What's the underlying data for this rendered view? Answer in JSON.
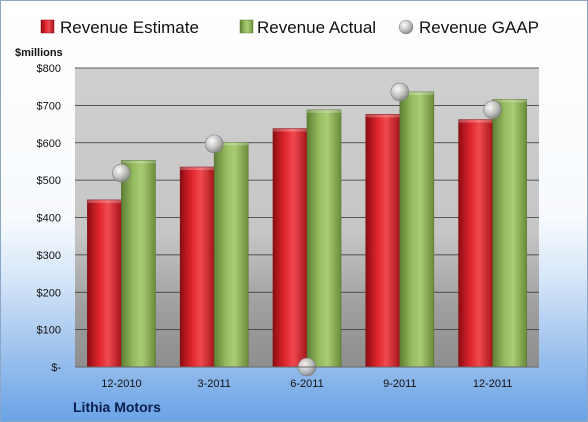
{
  "company": "Lithia Motors",
  "chart_data": {
    "type": "bar",
    "unit_label": "$millions",
    "categories": [
      "12-2010",
      "3-2011",
      "6-2011",
      "9-2011",
      "12-2011"
    ],
    "series": [
      {
        "name": "Revenue Estimate",
        "kind": "bar",
        "color": "#d9202a",
        "values": [
          447,
          535,
          638,
          676,
          662
        ]
      },
      {
        "name": "Revenue Actual",
        "kind": "bar",
        "color": "#8db35a",
        "values": [
          553,
          601,
          688,
          736,
          716
        ]
      },
      {
        "name": "Revenue GAAP",
        "kind": "point",
        "color": "#c8c8c8",
        "values": [
          519,
          597,
          0,
          736,
          688
        ]
      }
    ],
    "ylim": [
      0,
      800
    ],
    "yticks": [
      0,
      100,
      200,
      300,
      400,
      500,
      600,
      700,
      800
    ],
    "ytick_labels": [
      "$-",
      "$100",
      "$200",
      "$300",
      "$400",
      "$500",
      "$600",
      "$700",
      "$800"
    ],
    "grid": true,
    "legend": "top"
  }
}
